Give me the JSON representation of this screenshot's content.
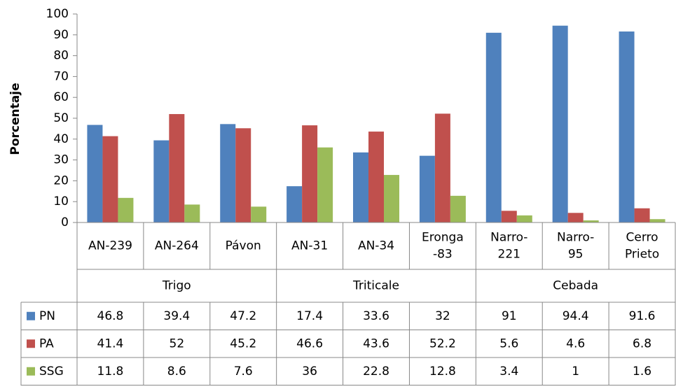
{
  "chart_data": {
    "type": "bar",
    "y_label": "Porcentaje",
    "groups": [
      {
        "name": "Trigo",
        "categories": [
          [
            "AN-239"
          ],
          [
            "AN-264"
          ],
          [
            "Pávon"
          ]
        ]
      },
      {
        "name": "Triticale",
        "categories": [
          [
            "AN-31"
          ],
          [
            "AN-34"
          ],
          [
            "Eronga",
            "-83"
          ]
        ]
      },
      {
        "name": "Cebada",
        "categories": [
          [
            "Narro-",
            "221"
          ],
          [
            "Narro-",
            "95"
          ],
          [
            "Cerro",
            "Prieto"
          ]
        ]
      }
    ],
    "series": [
      {
        "name": "PN",
        "color": "#4f81bd",
        "values": [
          46.8,
          39.4,
          47.2,
          17.4,
          33.6,
          32,
          91,
          94.4,
          91.6
        ]
      },
      {
        "name": "PA",
        "color": "#c0504d",
        "values": [
          41.4,
          52,
          45.2,
          46.6,
          43.6,
          52.2,
          5.6,
          4.6,
          6.8
        ]
      },
      {
        "name": "SSG",
        "color": "#9bbb59",
        "values": [
          11.8,
          8.6,
          7.6,
          36,
          22.8,
          12.8,
          3.4,
          1,
          1.6
        ]
      }
    ],
    "ylim": [
      0,
      100
    ],
    "yticks": [
      0,
      10,
      20,
      30,
      40,
      50,
      60,
      70,
      80,
      90,
      100
    ]
  }
}
